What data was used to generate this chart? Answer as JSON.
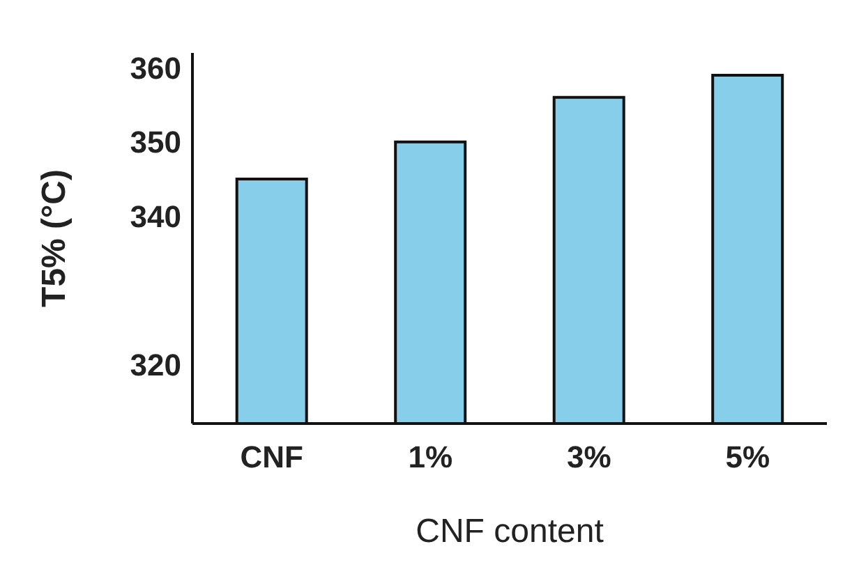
{
  "chart_data": {
    "type": "bar",
    "xlabel": "CNF content",
    "ylabel": "T5% (°C)",
    "categories": [
      "CNF",
      "1%",
      "3%",
      "5%"
    ],
    "values": [
      345,
      350,
      356,
      359
    ],
    "color": "#87ceeb",
    "ylim": [
      312,
      362
    ],
    "yticks": [
      320,
      340,
      350,
      360
    ],
    "grid": false
  }
}
